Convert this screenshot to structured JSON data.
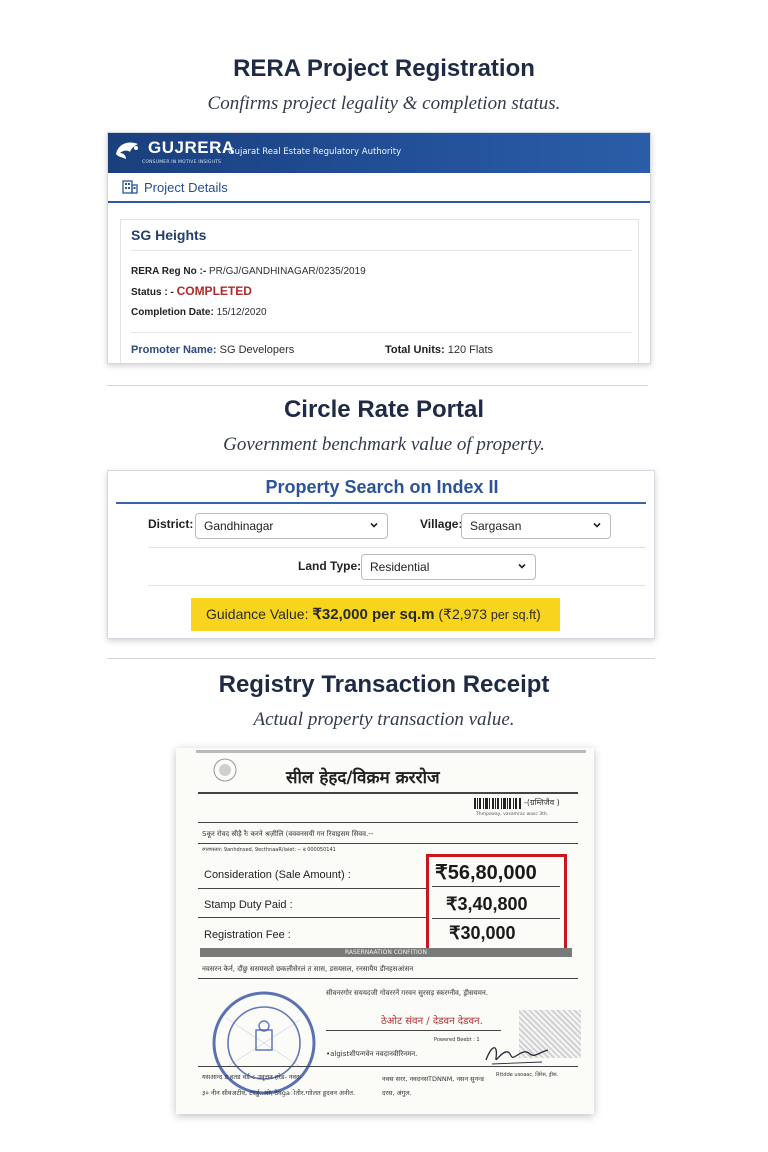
{
  "sections": {
    "rera": {
      "title": "RERA Project Registration",
      "subtitle": "Confirms project legality & completion status."
    },
    "circle": {
      "title": "Circle Rate Portal",
      "subtitle": "Government benchmark value of property."
    },
    "registry": {
      "title": "Registry Transaction Receipt",
      "subtitle": "Actual property transaction value."
    }
  },
  "rera_card": {
    "brand": "GUJRERA",
    "brand_sub": "CONSUMER IN MOTIVE INSIGHTS",
    "authority": "Gujarat Real Estate Regulatory Authority",
    "tab_label": "Project Details",
    "project_name": "SG Heights",
    "reg_no_label": "RERA Reg No :-",
    "reg_no_value": "PR/GJ/GANDHINAGAR/0235/2019",
    "status_label": "Status : -",
    "status_value": "COMPLETED",
    "completion_label": "Completion Date:",
    "completion_value": "15/12/2020",
    "promoter_label": "Promoter Name:",
    "promoter_value": "SG Developers",
    "units_label": "Total Units:",
    "units_value": "120 Flats",
    "colors": {
      "header": "#1f4b8e",
      "status": "#b02a2a"
    }
  },
  "circle_card": {
    "title": "Property Search on Index II",
    "district_label": "District:",
    "district_value": "Gandhinagar",
    "village_label": "Village:",
    "village_value": "Sargasan",
    "landtype_label": "Land Type:",
    "landtype_value": "Residential",
    "guidance_prefix": "Guidance Value:",
    "guidance_main": "₹32,000 per sq.m",
    "guidance_paren_open": "(",
    "guidance_alt_amount": "₹2,973",
    "guidance_alt_unit": "per sq.ft",
    "guidance_paren_close": ")",
    "colors": {
      "title": "#2a539a",
      "highlight": "#f7d51f"
    }
  },
  "receipt": {
    "title": "सील हेहद/विक्रम क्रररोज",
    "barcode_text": "-(ग्रम्तिजैव )",
    "barcode_sub": "Thmpsway, vasamrac wasc 3th.",
    "line1": "Sकूर रोवद स्रीड़ै रैः करने श्रज़ीलि (वववनसयी गन रिवाइसम सिवव.--",
    "line2": "रगरणस्तार: 9anhdnsed, 9ecthnaaR/iaiet: -- न्र 000050141",
    "consideration_label": "Consideration (Sale Amount) :",
    "consideration_value": "₹56,80,000",
    "stamp_label": "Stamp Duty Paid :",
    "stamp_value": "₹3,40,800",
    "fee_label": "Registration Fee :",
    "fee_value": "₹30,000",
    "band_text": "RASERNAATION CONFITION",
    "line3": "नवसरन केर्न, दौंछु ससयसतो छकलीसेरलं त सास, डसयसल, रनसायैय डीनहसआंसन",
    "line4": "सीवनरगोर सययदजी गोवररनें गरवन सुरसड़ स्करग्नीव, ड्रीसयमन.",
    "ornate_text": "ठेओट संवन / देडवन देडवन.",
    "line5": "•algistशीपन्गवेन नवदानवीरिनमन.",
    "line6": "Powered Beebt : 1",
    "line7": "यसआन्द ड हतड वर्ड-८ उवृत्तन हरेड-  नवद-",
    "line8": "३० नीन सीवअटीव, टदर्डु..ओ\\ ठेवgaोतीर.गाोलत ड्डदवन अनीत.",
    "line9": "नवस सरर, नवदनस",
    "line10": "दरस, अंगुल.",
    "line11": "TDNNM,  नसन सुनन्ड",
    "line12": "Rttdde usoaac, ज़िरेस, ड्रीक."
  }
}
